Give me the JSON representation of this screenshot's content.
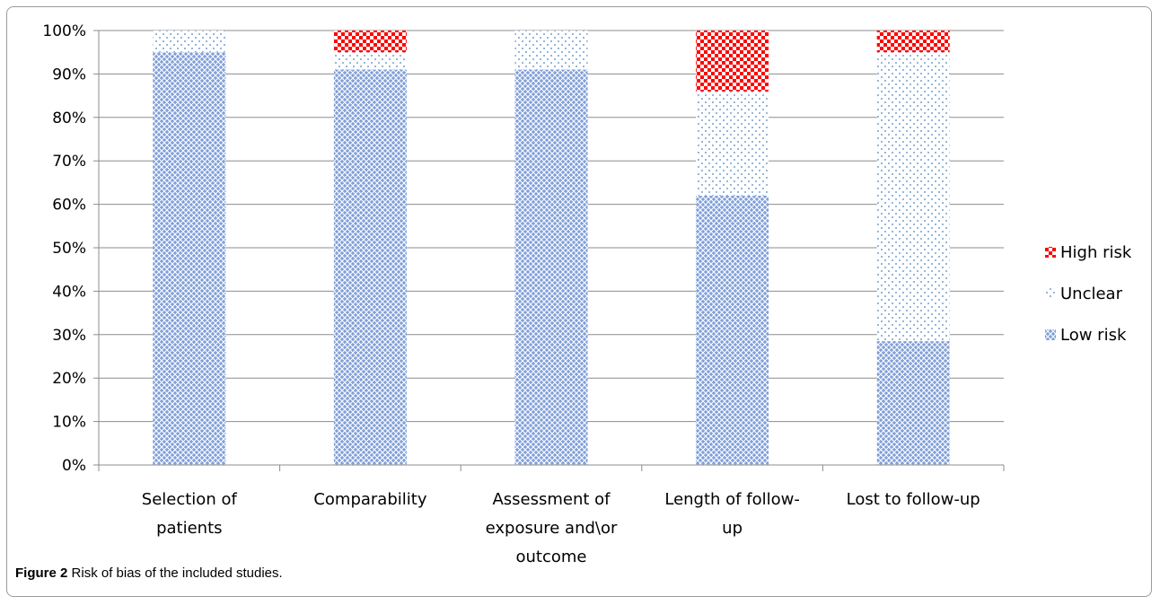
{
  "chart_data": {
    "type": "bar",
    "stacked": true,
    "categories": [
      [
        "Selection of",
        "patients"
      ],
      [
        "Comparability"
      ],
      [
        "Assessment of",
        "exposure and\\or",
        "outcome"
      ],
      [
        "Length of follow-",
        "up"
      ],
      [
        "Lost to follow-up"
      ]
    ],
    "series": [
      {
        "name": "Low risk",
        "color": "#4f81bd",
        "pattern": "crosshatch",
        "values": [
          95,
          91,
          91,
          62,
          28.5
        ]
      },
      {
        "name": "Unclear",
        "color": "#4f81bd",
        "pattern": "dots",
        "values": [
          5,
          4,
          9,
          24,
          66.5
        ]
      },
      {
        "name": "High risk",
        "color": "#ff0000",
        "pattern": "checker",
        "values": [
          0,
          5,
          0,
          14,
          5
        ]
      }
    ],
    "ylim": [
      0,
      100
    ],
    "yticks": [
      "0%",
      "10%",
      "20%",
      "30%",
      "40%",
      "50%",
      "60%",
      "70%",
      "80%",
      "90%",
      "100%"
    ],
    "legend_position": "right",
    "legend_order": [
      "High risk",
      "Unclear",
      "Low risk"
    ],
    "grid": true
  },
  "caption": {
    "label": "Figure 2",
    "text": "Risk of bias of the included studies."
  }
}
